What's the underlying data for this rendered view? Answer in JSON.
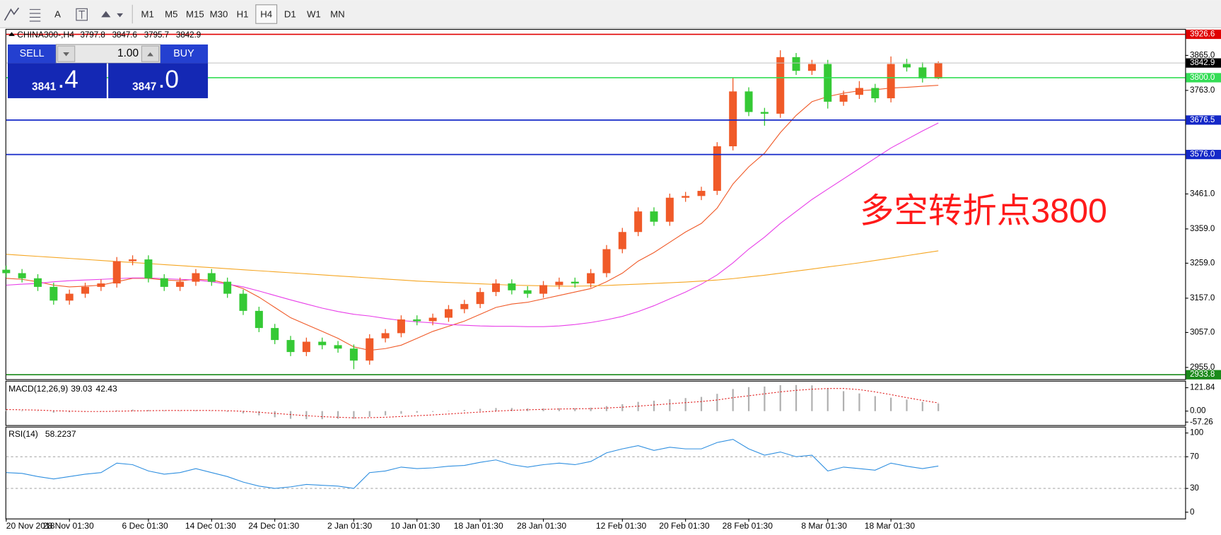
{
  "toolbar": {
    "text_tool": "A",
    "timeframes": [
      "M1",
      "M5",
      "M15",
      "M30",
      "H1",
      "H4",
      "D1",
      "W1",
      "MN"
    ],
    "active_timeframe": 5
  },
  "trade_panel": {
    "sell": "SELL",
    "buy": "BUY",
    "lot": "1.00",
    "sell_price": "3841",
    "sell_pips": ".4",
    "buy_price": "3847",
    "buy_pips": ".0"
  },
  "chart_data": [
    {
      "type": "candlestick",
      "title": "CHINA300-,H4",
      "categories": [
        "20 Nov 2018",
        null,
        null,
        null,
        "28 Nov 01:30",
        null,
        null,
        null,
        null,
        "6 Dec 01:30",
        null,
        null,
        null,
        "14 Dec 01:30",
        null,
        null,
        null,
        "24 Dec 01:30",
        null,
        null,
        null,
        null,
        "2 Jan 01:30",
        null,
        null,
        null,
        "10 Jan 01:30",
        null,
        null,
        null,
        "18 Jan 01:30",
        null,
        null,
        null,
        "28 Jan 01:30",
        null,
        null,
        null,
        null,
        "12 Feb 01:30",
        null,
        null,
        null,
        "20 Feb 01:30",
        null,
        null,
        null,
        "28 Feb 01:30",
        null,
        null,
        null,
        null,
        "8 Mar 01:30",
        null,
        null,
        null,
        "18 Mar 01:30",
        null,
        null,
        null
      ],
      "open": [
        3240,
        3230,
        3215,
        3190,
        3150,
        3170,
        3190,
        3200,
        3265,
        3270,
        3215,
        3190,
        3205,
        3230,
        3205,
        3170,
        3120,
        3070,
        3035,
        3000,
        3030,
        3020,
        3010,
        2975,
        3040,
        3055,
        3095,
        3090,
        3100,
        3125,
        3140,
        3175,
        3200,
        3180,
        3170,
        3195,
        3205,
        3200,
        3230,
        3300,
        3350,
        3410,
        3380,
        3450,
        3455,
        3470,
        3600,
        3760,
        3700,
        3695,
        3860,
        3820,
        3840,
        3730,
        3750,
        3770,
        3740,
        3840,
        3830,
        3797.8
      ],
      "high": [
        3252,
        3242,
        3227,
        3202,
        3182,
        3202,
        3212,
        3277,
        3282,
        3282,
        3227,
        3217,
        3242,
        3242,
        3217,
        3182,
        3132,
        3082,
        3047,
        3042,
        3042,
        3032,
        3022,
        3052,
        3067,
        3107,
        3107,
        3112,
        3137,
        3152,
        3187,
        3212,
        3212,
        3192,
        3207,
        3217,
        3217,
        3242,
        3312,
        3362,
        3422,
        3422,
        3462,
        3467,
        3482,
        3612,
        3800,
        3772,
        3712,
        3880,
        3872,
        3852,
        3852,
        3762,
        3790,
        3782,
        3862,
        3855,
        3845,
        3847.6
      ],
      "low": [
        3218,
        3203,
        3178,
        3138,
        3138,
        3158,
        3178,
        3188,
        3253,
        3203,
        3178,
        3178,
        3193,
        3193,
        3158,
        3108,
        3058,
        3023,
        2988,
        2988,
        3008,
        2998,
        2950,
        2963,
        3028,
        3043,
        3078,
        3078,
        3088,
        3113,
        3128,
        3163,
        3168,
        3158,
        3158,
        3183,
        3188,
        3188,
        3218,
        3288,
        3338,
        3368,
        3368,
        3438,
        3443,
        3458,
        3588,
        3688,
        3660,
        3683,
        3808,
        3808,
        3710,
        3718,
        3738,
        3728,
        3728,
        3818,
        3786,
        3795.7
      ],
      "close": [
        3230,
        3215,
        3190,
        3150,
        3170,
        3190,
        3200,
        3265,
        3270,
        3215,
        3190,
        3205,
        3230,
        3205,
        3170,
        3120,
        3070,
        3035,
        3000,
        3030,
        3020,
        3010,
        2975,
        3040,
        3055,
        3095,
        3090,
        3100,
        3125,
        3140,
        3175,
        3200,
        3180,
        3170,
        3195,
        3205,
        3200,
        3230,
        3300,
        3350,
        3410,
        3380,
        3450,
        3455,
        3470,
        3600,
        3760,
        3700,
        3695,
        3860,
        3820,
        3840,
        3730,
        3750,
        3770,
        3740,
        3840,
        3830,
        3798,
        3842.9
      ],
      "up_color": "#f05a28",
      "down_color": "#35c935",
      "moving_averages": [
        {
          "color": "#f05a28",
          "values": [
            3215,
            3212,
            3205,
            3195,
            3190,
            3192,
            3195,
            3205,
            3215,
            3215,
            3210,
            3208,
            3212,
            3210,
            3200,
            3185,
            3160,
            3130,
            3100,
            3080,
            3060,
            3040,
            3015,
            3005,
            3010,
            3020,
            3040,
            3060,
            3075,
            3090,
            3110,
            3130,
            3140,
            3145,
            3155,
            3165,
            3175,
            3185,
            3205,
            3230,
            3265,
            3290,
            3320,
            3350,
            3375,
            3420,
            3490,
            3540,
            3580,
            3640,
            3690,
            3730,
            3745,
            3755,
            3762,
            3765,
            3770,
            3772,
            3775,
            3778
          ]
        },
        {
          "color": "#e83ee8",
          "values": [
            3195,
            3198,
            3200,
            3205,
            3208,
            3210,
            3212,
            3214,
            3216,
            3216,
            3214,
            3212,
            3210,
            3205,
            3198,
            3190,
            3178,
            3165,
            3152,
            3140,
            3128,
            3118,
            3110,
            3105,
            3098,
            3092,
            3088,
            3085,
            3080,
            3078,
            3076,
            3075,
            3075,
            3074,
            3074,
            3076,
            3080,
            3086,
            3094,
            3104,
            3118,
            3135,
            3155,
            3175,
            3198,
            3225,
            3260,
            3300,
            3335,
            3375,
            3410,
            3445,
            3475,
            3505,
            3535,
            3565,
            3595,
            3620,
            3645,
            3668
          ]
        },
        {
          "color": "#f5a623",
          "values": [
            3285,
            3282,
            3279,
            3276,
            3273,
            3270,
            3267,
            3264,
            3261,
            3258,
            3255,
            3252,
            3249,
            3246,
            3243,
            3240,
            3237,
            3234,
            3231,
            3228,
            3225,
            3222,
            3219,
            3216,
            3213,
            3210,
            3207,
            3205,
            3203,
            3201,
            3199,
            3197,
            3195,
            3194,
            3193,
            3192,
            3192,
            3193,
            3194,
            3196,
            3198,
            3200,
            3202,
            3204,
            3207,
            3210,
            3214,
            3219,
            3224,
            3230,
            3236,
            3242,
            3248,
            3254,
            3260,
            3267,
            3274,
            3281,
            3288,
            3295
          ]
        }
      ],
      "ylim": [
        2923,
        3940
      ],
      "yticks": [
        {
          "value": 2955,
          "label": "2955.0"
        },
        {
          "value": 3057,
          "label": "3057.0"
        },
        {
          "value": 3157,
          "label": "3157.0"
        },
        {
          "value": 3259,
          "label": "3259.0"
        },
        {
          "value": 3359,
          "label": "3359.0"
        },
        {
          "value": 3461,
          "label": "3461.0"
        },
        {
          "value": 3763,
          "label": "3763.0"
        },
        {
          "value": 3865,
          "label": "3865.0"
        }
      ],
      "hlines": [
        {
          "value": 3926.6,
          "color": "#e00000"
        },
        {
          "value": 3800,
          "label": "3800.0",
          "color": "#33dd55"
        },
        {
          "value": 3676.5,
          "color": "#1428c8"
        },
        {
          "value": 3576,
          "label": "3576.0",
          "color": "#1428c8"
        },
        {
          "value": 2933.8,
          "color": "#1a8a1a"
        }
      ],
      "current_price_color": "#000000",
      "annotation": {
        "text": "多空转折点3800",
        "color": "#ff1a1a"
      }
    },
    {
      "type": "macd",
      "title": "MACD(12,26,9)",
      "histogram": {
        "color": "#b0b0b0",
        "values": [
          5,
          3,
          -2,
          -8,
          -6,
          -3,
          -2,
          4,
          8,
          6,
          3,
          2,
          4,
          2,
          -4,
          -12,
          -22,
          -32,
          -40,
          -42,
          -42,
          -40,
          -40,
          -30,
          -22,
          -14,
          -8,
          -4,
          2,
          6,
          12,
          16,
          16,
          14,
          14,
          15,
          15,
          18,
          26,
          36,
          48,
          54,
          62,
          68,
          74,
          90,
          115,
          125,
          128,
          135,
          136,
          134,
          118,
          104,
          92,
          78,
          70,
          60,
          48,
          39.03
        ]
      },
      "signal": {
        "color": "#e02020",
        "values": [
          8,
          7,
          5,
          2,
          0,
          -2,
          -2,
          -1,
          1,
          2,
          3,
          3,
          3,
          3,
          2,
          -1,
          -6,
          -12,
          -18,
          -24,
          -29,
          -32,
          -35,
          -34,
          -32,
          -28,
          -24,
          -20,
          -15,
          -10,
          -5,
          0,
          4,
          7,
          9,
          11,
          12,
          13,
          16,
          20,
          26,
          32,
          38,
          44,
          50,
          58,
          70,
          80,
          90,
          100,
          108,
          114,
          118,
          118,
          112,
          100,
          86,
          70,
          56,
          42.43
        ]
      },
      "ylim": [
        -69,
        154
      ],
      "yticks": [
        -57.26,
        {
          "value": 0,
          "label": "0.00"
        },
        121.84
      ]
    },
    {
      "type": "line",
      "title": "RSI(14)",
      "color": "#2f8fe0",
      "values": [
        50,
        49,
        45,
        42,
        45,
        48,
        50,
        62,
        60,
        52,
        48,
        50,
        55,
        50,
        45,
        38,
        33,
        30,
        32,
        35,
        34,
        33,
        30,
        50,
        52,
        57,
        55,
        56,
        58,
        59,
        63,
        66,
        60,
        57,
        60,
        62,
        60,
        64,
        75,
        80,
        84,
        78,
        82,
        80,
        80,
        88,
        92,
        80,
        72,
        76,
        70,
        72,
        52,
        57,
        55,
        53,
        62,
        58,
        55,
        58.2237
      ],
      "ylim": [
        -9,
        107
      ],
      "yticks": [
        0,
        30,
        70,
        100
      ],
      "levels": [
        30,
        70
      ]
    }
  ]
}
